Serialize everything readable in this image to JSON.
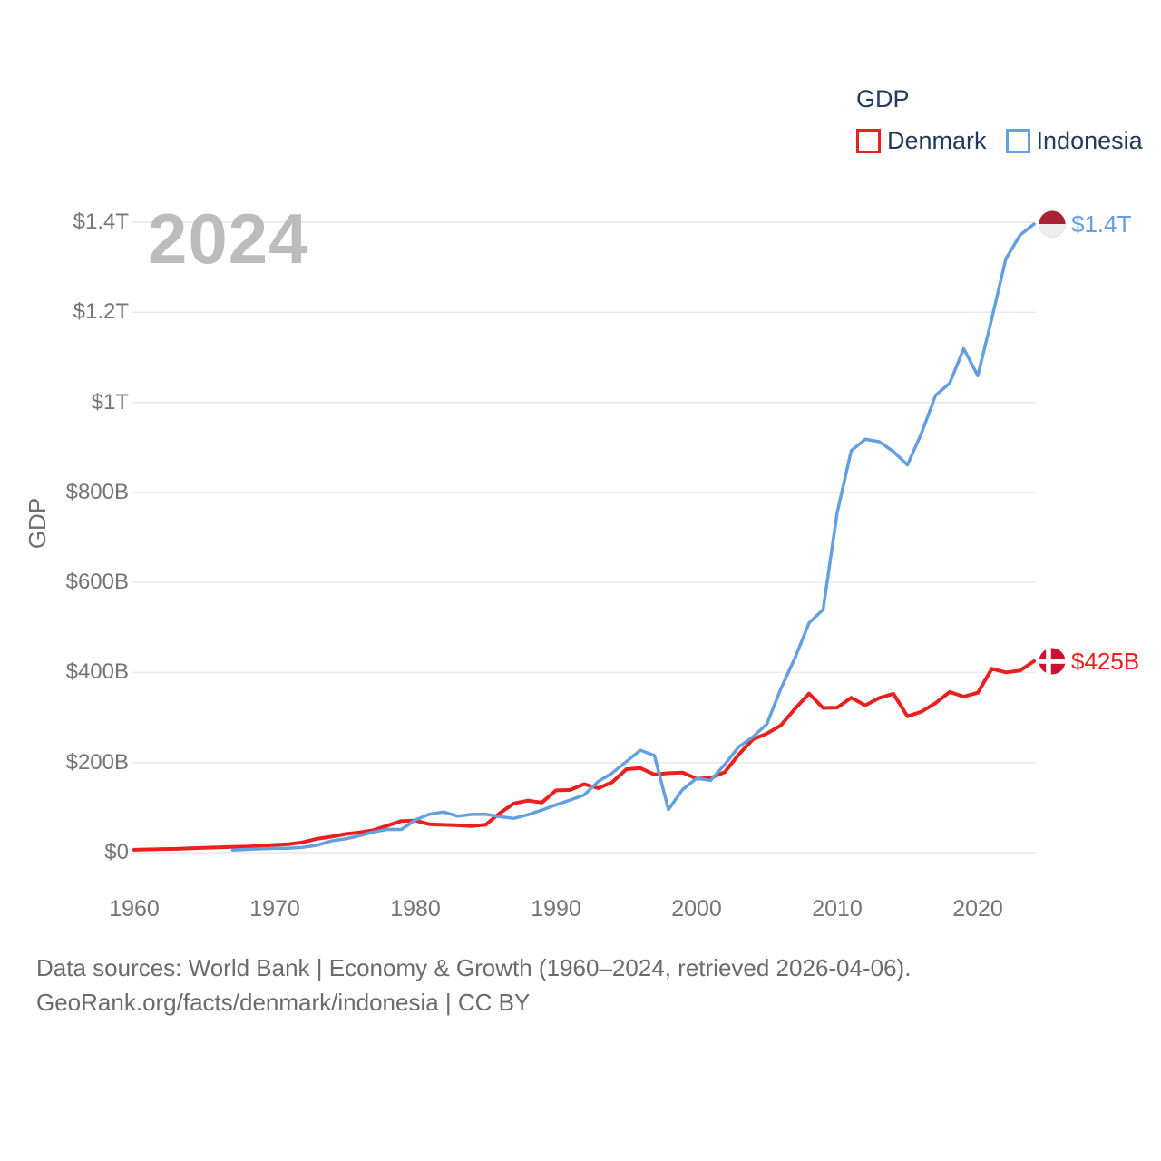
{
  "legend": {
    "title": "GDP",
    "items": [
      {
        "label": "Denmark",
        "color": "#e9201e"
      },
      {
        "label": "Indonesia",
        "color": "#62a0df"
      }
    ]
  },
  "watermark": "2024",
  "footer": {
    "line1": "Data sources: World Bank | Economy & Growth (1960–2024, retrieved 2026-04-06).",
    "line2": "GeoRank.org/facts/denmark/indonesia | CC BY"
  },
  "chart_data": {
    "type": "line",
    "title": "GDP",
    "ylabel": "GDP",
    "xlabel": "",
    "grid": "horizontal",
    "legend_position": "top-right",
    "xlim": [
      1960,
      2024
    ],
    "ylim": [
      0,
      1400
    ],
    "x_ticks": [
      1960,
      1970,
      1980,
      1990,
      2000,
      2010,
      2020
    ],
    "y_ticks": [
      {
        "value": 0,
        "label": "$0"
      },
      {
        "value": 200,
        "label": "$200B"
      },
      {
        "value": 400,
        "label": "$400B"
      },
      {
        "value": 600,
        "label": "$600B"
      },
      {
        "value": 800,
        "label": "$800B"
      },
      {
        "value": 1000,
        "label": "$1T"
      },
      {
        "value": 1200,
        "label": "$1.2T"
      },
      {
        "value": 1400,
        "label": "$1.4T"
      }
    ],
    "unit": "USD billions",
    "series": [
      {
        "name": "Denmark",
        "color": "#e9201e",
        "flag_icon": "denmark-flag-icon",
        "flag_colors": {
          "red": "#cd1230",
          "white": "#ffffff"
        },
        "start_year": 1960,
        "end_year": 2024,
        "end_value": 425,
        "end_label": "$425B",
        "values": [
          6.2,
          7.0,
          7.8,
          8.3,
          9.4,
          10.7,
          11.6,
          12.7,
          13.2,
          14.9,
          17.1,
          18.8,
          23.0,
          30.7,
          35.3,
          41.1,
          44.7,
          49.7,
          59.9,
          70.2,
          71.1,
          62.8,
          61.6,
          60.6,
          58.9,
          61.8,
          87.7,
          109.1,
          115.4,
          111.1,
          138.2,
          139.1,
          152.0,
          143.0,
          156.4,
          185.1,
          187.8,
          173.4,
          176.4,
          177.9,
          164.2,
          165.8,
          178.6,
          218.1,
          251.4,
          264.5,
          282.9,
          319.4,
          353.4,
          321.2,
          322.0,
          344.0,
          327.1,
          343.6,
          352.8,
          302.7,
          313.1,
          332.1,
          356.8,
          346.5,
          355.2,
          408.4,
          400.2,
          404.2,
          425.0
        ]
      },
      {
        "name": "Indonesia",
        "color": "#62a0df",
        "flag_icon": "indonesia-flag-icon",
        "flag_colors": {
          "red": "#a82434",
          "white": "#ededed"
        },
        "start_year": 1967,
        "end_year": 2024,
        "end_value": 1396,
        "end_label": "$1.4T",
        "values": [
          5.7,
          7.1,
          8.3,
          9.2,
          9.9,
          11.6,
          16.3,
          25.8,
          30.5,
          37.3,
          45.8,
          51.5,
          51.4,
          72.5,
          85.5,
          90.2,
          81.0,
          84.8,
          85.3,
          80.0,
          75.9,
          84.3,
          94.5,
          106.1,
          116.6,
          128.0,
          158.0,
          176.9,
          202.1,
          227.4,
          215.7,
          95.4,
          140.0,
          165.0,
          160.4,
          195.7,
          234.8,
          256.8,
          285.9,
          364.6,
          432.2,
          510.2,
          539.6,
          755.1,
          892.6,
          917.9,
          912.5,
          890.8,
          861.0,
          931.9,
          1015.6,
          1042.3,
          1119.1,
          1059.1,
          1186.5,
          1319.1,
          1371.2,
          1396.0
        ]
      }
    ]
  }
}
